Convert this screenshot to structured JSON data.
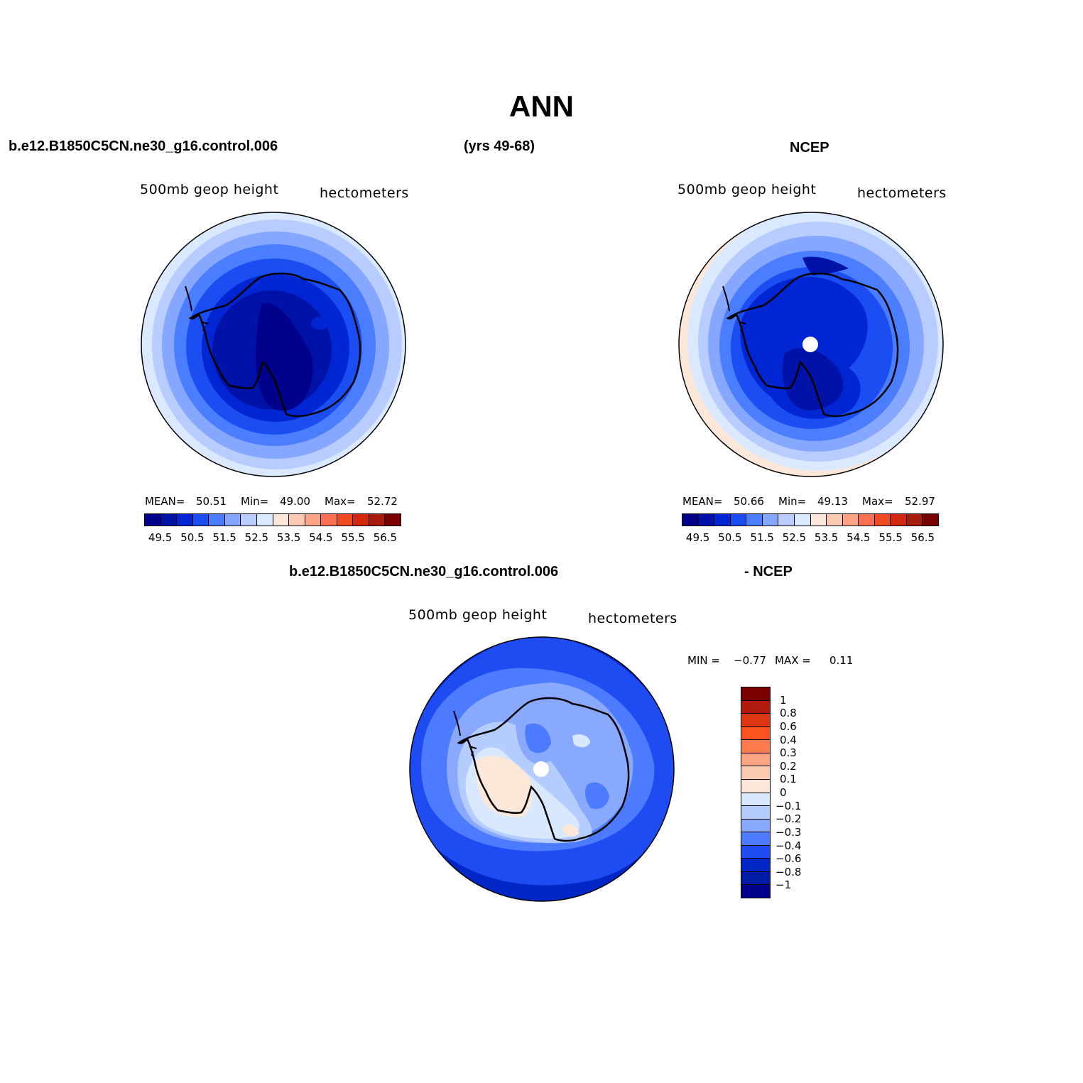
{
  "title": "ANN",
  "panel1": {
    "case": "b.e12.B1850C5CN.ne30_g16.control.006",
    "years": "(yrs 49-68)",
    "field": "500mb geop height",
    "units": "hectometers",
    "mean_label": "MEAN=",
    "mean": "50.51",
    "min_label": "Min=",
    "min": "49.00",
    "max_label": "Max=",
    "max": "52.72"
  },
  "panel2": {
    "case": "NCEP",
    "field": "500mb geop height",
    "units": "hectometers",
    "mean_label": "MEAN=",
    "mean": "50.66",
    "min_label": "Min=",
    "min": "49.13",
    "max_label": "Max=",
    "max": "52.97"
  },
  "panel3": {
    "case": "b.e12.B1850C5CN.ne30_g16.control.006",
    "minus": "- NCEP",
    "field": "500mb geop height",
    "units": "hectometers",
    "min_label": "MIN =",
    "min": "−0.77",
    "max_label": "MAX =",
    "max": "0.11"
  },
  "colorbar_abs": {
    "colors": [
      "#00008b",
      "#0012a8",
      "#0026d3",
      "#1b4ef2",
      "#4a7dff",
      "#86a7ff",
      "#b8ccff",
      "#dae9ff",
      "#fde7d8",
      "#fcc9b1",
      "#fca386",
      "#fa7050",
      "#f04a20",
      "#d3280f",
      "#a81b0e",
      "#7a0000"
    ],
    "ticks": [
      "49.5",
      "50.5",
      "51.5",
      "52.5",
      "53.5",
      "54.5",
      "55.5",
      "56.5"
    ]
  },
  "colorbar_diff": {
    "colors": [
      "#7a0000",
      "#b11a0e",
      "#dd3612",
      "#fb5420",
      "#fd7b4e",
      "#fca584",
      "#fcc9b1",
      "#fde7d8",
      "#d8e8ff",
      "#b5ccff",
      "#89a9ff",
      "#4d7bff",
      "#1f4cf2",
      "#0027c6",
      "#001ba4",
      "#00008b"
    ],
    "ticks": [
      "1",
      "0.8",
      "0.6",
      "0.4",
      "0.3",
      "0.2",
      "0.1",
      "0",
      "−0.1",
      "−0.2",
      "−0.3",
      "−0.4",
      "−0.6",
      "−0.8",
      "−1"
    ]
  }
}
